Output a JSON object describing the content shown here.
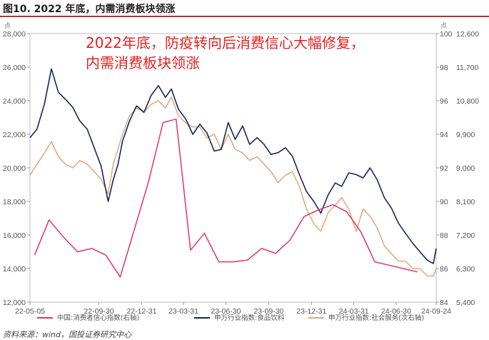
{
  "figure_title": "图10. 2022 年底，内需消费板块领涨",
  "source": "资料来源：wind，国投证券研究中心",
  "colors": {
    "food": "#14285c",
    "service": "#e2a67a",
    "confidence": "#e0356a",
    "title_rule": "#b9342f",
    "note": "#e8201e"
  },
  "chart_data": {
    "type": "line",
    "annotation": [
      "2022年底，防疫转向后消费信心大幅修复，",
      "内需消费板块领涨"
    ],
    "left_unit": "点",
    "right_unit": "点",
    "x_tick_labels": [
      "22-05-05",
      "22-09-30",
      "22-12-31",
      "23-03-31",
      "23-06-30",
      "23-09-30",
      "23-12-31",
      "24-03-31",
      "24-06-30",
      "24-09-24"
    ],
    "left_axis": {
      "ylim": [
        12000,
        28000
      ],
      "ticks": [
        "12,000",
        "14,000",
        "16,000",
        "18,000",
        "20,000",
        "22,000",
        "24,000",
        "26,000",
        "28,000"
      ]
    },
    "right_axis_outer": {
      "ylim": [
        5400,
        12600
      ],
      "ticks": [
        "5,400",
        "6,300",
        "7,200",
        "8,100",
        "9,000",
        "9,900",
        "10,800",
        "11,700",
        "12,600"
      ]
    },
    "right_axis_inner": {
      "ylim": [
        84,
        100
      ],
      "ticks": [
        "84",
        "86",
        "88",
        "90",
        "92",
        "94",
        "96",
        "98",
        "100"
      ]
    },
    "series": [
      {
        "name": "中国:消费者信心指数(右轴)",
        "axis": "inner-right",
        "x": [
          "2022-05",
          "2022-06",
          "2022-07",
          "2022-08",
          "2022-09",
          "2022-10",
          "2022-11",
          "2022-12",
          "2023-01",
          "2023-02",
          "2023-03",
          "2023-04",
          "2023-05",
          "2023-06",
          "2023-07",
          "2023-08",
          "2023-09",
          "2023-10",
          "2023-11",
          "2023-12",
          "2024-01",
          "2024-02",
          "2024-03",
          "2024-04",
          "2024-05",
          "2024-06",
          "2024-07",
          "2024-08"
        ],
        "values": [
          86.8,
          88.9,
          87.9,
          87.0,
          87.2,
          86.8,
          85.5,
          88.3,
          91.2,
          94.7,
          94.9,
          87.1,
          88.1,
          86.4,
          86.4,
          86.5,
          87.2,
          86.9,
          87.7,
          89.1,
          89.5,
          89.8,
          89.4,
          88.2,
          86.4,
          86.2,
          86.0,
          85.8
        ]
      },
      {
        "name": "申万行业指数:食品饮料",
        "axis": "left",
        "x": [
          "2022-05-05",
          "2022-05-20",
          "2022-06-05",
          "2022-06-20",
          "2022-07-05",
          "2022-07-20",
          "2022-08-05",
          "2022-08-20",
          "2022-09-05",
          "2022-09-20",
          "2022-10-05",
          "2022-10-20",
          "2022-10-31",
          "2022-11-10",
          "2022-11-20",
          "2022-12-05",
          "2022-12-20",
          "2023-01-05",
          "2023-01-20",
          "2023-02-05",
          "2023-02-20",
          "2023-03-05",
          "2023-03-20",
          "2023-04-05",
          "2023-04-20",
          "2023-05-05",
          "2023-05-20",
          "2023-06-05",
          "2023-06-20",
          "2023-07-05",
          "2023-07-20",
          "2023-08-05",
          "2023-08-20",
          "2023-09-05",
          "2023-09-20",
          "2023-10-05",
          "2023-10-20",
          "2023-11-05",
          "2023-11-20",
          "2023-12-05",
          "2023-12-20",
          "2024-01-05",
          "2024-01-20",
          "2024-02-05",
          "2024-02-20",
          "2024-03-05",
          "2024-03-20",
          "2024-04-05",
          "2024-04-20",
          "2024-05-05",
          "2024-05-20",
          "2024-06-05",
          "2024-06-20",
          "2024-07-05",
          "2024-07-20",
          "2024-08-05",
          "2024-08-20",
          "2024-09-05",
          "2024-09-18",
          "2024-09-24"
        ],
        "values": [
          21800,
          22300,
          23800,
          25900,
          24500,
          24100,
          23600,
          22800,
          22300,
          21200,
          20100,
          18000,
          19300,
          20200,
          21600,
          22800,
          23700,
          23300,
          24300,
          24900,
          24200,
          24700,
          23500,
          22900,
          22000,
          22600,
          22100,
          21000,
          21100,
          22700,
          21700,
          22500,
          21400,
          21800,
          21400,
          20800,
          20900,
          21200,
          20700,
          19600,
          18600,
          18000,
          17300,
          18400,
          19100,
          18900,
          19700,
          19600,
          19400,
          20000,
          19300,
          18200,
          17600,
          16700,
          16100,
          15500,
          15000,
          14500,
          14300,
          15200
        ]
      },
      {
        "name": "申万行业指数:社会服务(次右轴)",
        "axis": "outer-right",
        "x": [
          "2022-05-05",
          "2022-05-20",
          "2022-06-05",
          "2022-06-20",
          "2022-07-05",
          "2022-07-20",
          "2022-08-05",
          "2022-08-20",
          "2022-09-05",
          "2022-09-20",
          "2022-10-05",
          "2022-10-20",
          "2022-10-31",
          "2022-11-10",
          "2022-11-20",
          "2022-12-05",
          "2022-12-20",
          "2023-01-05",
          "2023-01-20",
          "2023-02-05",
          "2023-02-20",
          "2023-03-05",
          "2023-03-20",
          "2023-04-05",
          "2023-04-20",
          "2023-05-05",
          "2023-05-20",
          "2023-06-05",
          "2023-06-20",
          "2023-07-05",
          "2023-07-20",
          "2023-08-05",
          "2023-08-20",
          "2023-09-05",
          "2023-09-20",
          "2023-10-05",
          "2023-10-20",
          "2023-11-05",
          "2023-11-20",
          "2023-12-05",
          "2023-12-20",
          "2024-01-05",
          "2024-01-20",
          "2024-02-05",
          "2024-02-20",
          "2024-03-05",
          "2024-03-20",
          "2024-04-05",
          "2024-04-20",
          "2024-05-05",
          "2024-05-20",
          "2024-06-05",
          "2024-06-20",
          "2024-07-05",
          "2024-07-20",
          "2024-08-05",
          "2024-08-20",
          "2024-09-05",
          "2024-09-18",
          "2024-09-24"
        ],
        "values": [
          8800,
          9100,
          9400,
          9700,
          9300,
          9100,
          9000,
          9200,
          9100,
          8900,
          8700,
          8300,
          9100,
          9500,
          9900,
          10400,
          10600,
          10500,
          10700,
          10800,
          10600,
          10900,
          10400,
          10200,
          10100,
          10100,
          9800,
          9900,
          9500,
          9900,
          9500,
          9400,
          9200,
          9300,
          9100,
          8900,
          8600,
          8800,
          8900,
          8500,
          7900,
          7500,
          7300,
          7800,
          8000,
          8200,
          7900,
          7300,
          7900,
          7700,
          7400,
          6900,
          6700,
          6500,
          6500,
          6300,
          6300,
          6100,
          6100,
          6300
        ]
      }
    ],
    "grid": false,
    "legend_position": "bottom"
  }
}
